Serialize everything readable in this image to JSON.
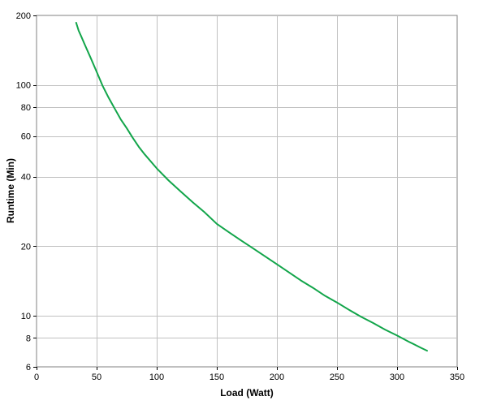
{
  "chart_data": {
    "type": "line",
    "title": "",
    "xlabel": "Load (Watt)",
    "ylabel": "Runtime (Min)",
    "xlim": [
      0,
      350
    ],
    "ylim": [
      6,
      200
    ],
    "yscale": "log",
    "grid": true,
    "x_ticks": [
      0,
      50,
      100,
      150,
      200,
      250,
      300,
      350
    ],
    "y_ticks": [
      6,
      8,
      10,
      20,
      40,
      60,
      80,
      100,
      200
    ],
    "colors": {
      "line": "#12a54a",
      "grid": "#c0c0c0",
      "plot_border": "#808080"
    },
    "series": [
      {
        "x": [
          33,
          35,
          37,
          40,
          45,
          50,
          55,
          60,
          65,
          70,
          75,
          80,
          85,
          90,
          100,
          110,
          120,
          130,
          140,
          150,
          160,
          170,
          180,
          190,
          200,
          210,
          220,
          230,
          240,
          250,
          260,
          270,
          280,
          290,
          300,
          310,
          320,
          325
        ],
        "y": [
          186,
          172,
          163,
          150,
          131,
          114,
          99,
          88,
          79,
          71,
          65,
          59,
          54,
          50,
          43.5,
          38.5,
          34.5,
          31,
          28,
          25,
          23,
          21.2,
          19.6,
          18.1,
          16.7,
          15.4,
          14.2,
          13.2,
          12.2,
          11.4,
          10.6,
          9.9,
          9.3,
          8.7,
          8.2,
          7.7,
          7.25,
          7.05
        ]
      }
    ]
  }
}
